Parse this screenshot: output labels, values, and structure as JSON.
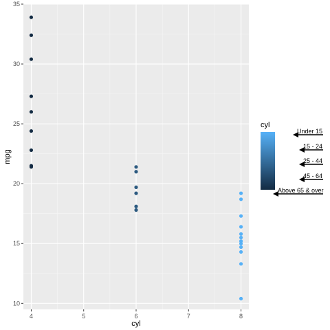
{
  "chart_data": {
    "type": "scatter",
    "xlabel": "cyl",
    "ylabel": "mpg",
    "xlim": [
      3.85,
      8.15
    ],
    "ylim": [
      9.5,
      35.0
    ],
    "x_ticks": [
      4,
      5,
      6,
      7,
      8
    ],
    "y_ticks": [
      10,
      15,
      20,
      25,
      30,
      35
    ],
    "grid": true,
    "background": "#ebebeb",
    "legend": {
      "title": "cyl",
      "position": "right",
      "gradient_low": "#132b43",
      "gradient_high": "#56b1f7",
      "annotations": [
        "Under 15",
        "15 - 24",
        "25 - 44",
        "45 - 64",
        "Above 65 & over"
      ]
    },
    "points": [
      {
        "x": 4,
        "y": 33.9
      },
      {
        "x": 4,
        "y": 32.4
      },
      {
        "x": 4,
        "y": 30.4
      },
      {
        "x": 4,
        "y": 27.3
      },
      {
        "x": 4,
        "y": 26.0
      },
      {
        "x": 4,
        "y": 24.4
      },
      {
        "x": 4,
        "y": 22.8
      },
      {
        "x": 4,
        "y": 21.5
      },
      {
        "x": 4,
        "y": 21.4
      },
      {
        "x": 6,
        "y": 21.4
      },
      {
        "x": 6,
        "y": 21.0
      },
      {
        "x": 6,
        "y": 19.7
      },
      {
        "x": 6,
        "y": 19.2
      },
      {
        "x": 6,
        "y": 18.1
      },
      {
        "x": 6,
        "y": 17.8
      },
      {
        "x": 8,
        "y": 19.2
      },
      {
        "x": 8,
        "y": 18.7
      },
      {
        "x": 8,
        "y": 17.3
      },
      {
        "x": 8,
        "y": 16.4
      },
      {
        "x": 8,
        "y": 15.8
      },
      {
        "x": 8,
        "y": 15.5
      },
      {
        "x": 8,
        "y": 15.2
      },
      {
        "x": 8,
        "y": 15.0
      },
      {
        "x": 8,
        "y": 14.7
      },
      {
        "x": 8,
        "y": 14.3
      },
      {
        "x": 8,
        "y": 13.3
      },
      {
        "x": 8,
        "y": 10.4
      }
    ],
    "point_colors": {
      "4": "#132b43",
      "6": "#2c5a80",
      "8": "#56b1f7"
    }
  }
}
